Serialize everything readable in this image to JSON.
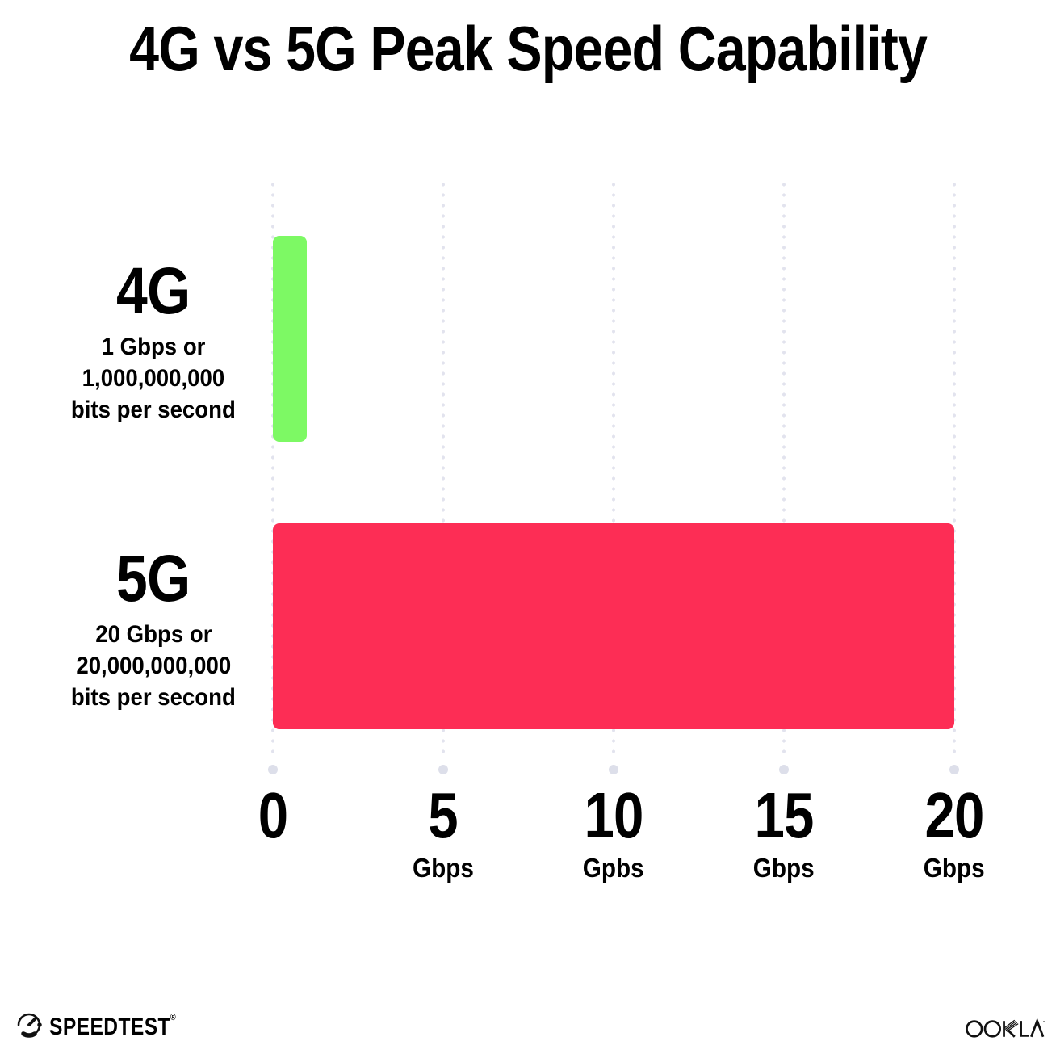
{
  "title": "4G vs 5G Peak Speed Capability",
  "chart_data": {
    "type": "bar",
    "orientation": "horizontal",
    "title": "4G vs 5G Peak Speed Capability",
    "xlabel": "Gbps",
    "xlim": [
      0,
      20
    ],
    "grid": "vertical dotted gridlines at 0, 5, 10, 15, 20 Gbps",
    "legend_position": "none",
    "categories": [
      "4G",
      "5G"
    ],
    "values": [
      1,
      20
    ],
    "rows": [
      {
        "label": "4G",
        "value_gbps": 1,
        "color": "#7DF964",
        "sublabel_lines": [
          "1 Gbps or",
          "1,000,000,000",
          "bits per second"
        ]
      },
      {
        "label": "5G",
        "value_gbps": 20,
        "color": "#FD2D55",
        "sublabel_lines": [
          "20 Gbps or",
          "20,000,000,000",
          "bits per second"
        ]
      }
    ],
    "ticks": [
      {
        "value": 0,
        "label": "0",
        "unit": ""
      },
      {
        "value": 5,
        "label": "5",
        "unit": "Gbps"
      },
      {
        "value": 10,
        "label": "10",
        "unit": "Gpbs"
      },
      {
        "value": 15,
        "label": "15",
        "unit": "Gbps"
      },
      {
        "value": 20,
        "label": "20",
        "unit": "Gbps"
      }
    ]
  },
  "footer": {
    "speedtest_label": "SPEEDTEST",
    "speedtest_reg": "®",
    "ookla_label": "OOKLA"
  },
  "colors": {
    "bar_4g": "#7DF964",
    "bar_5g": "#FD2D55",
    "grid_dot_small": "#E2E3EE",
    "grid_dot_large": "#DDDFEA",
    "text": "#000000",
    "background": "#FFFFFF"
  }
}
